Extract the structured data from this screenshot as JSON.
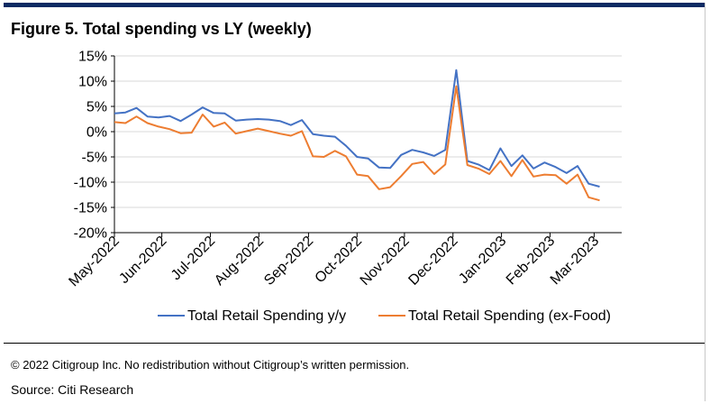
{
  "title": "Figure 5. Total spending vs LY (weekly)",
  "copyright": "© 2022 Citigroup Inc. No redistribution without Citigroup’s written permission.",
  "source": "Source: Citi Research",
  "chart_data": {
    "type": "line",
    "title": "Figure 5. Total spending vs LY (weekly)",
    "xlabel": "",
    "ylabel": "",
    "ylim": [
      -20,
      15
    ],
    "yticks": [
      15,
      10,
      5,
      0,
      -5,
      -10,
      -15,
      -20
    ],
    "ytick_labels": [
      "15%",
      "10%",
      "5%",
      "0%",
      "-5%",
      "-10%",
      "-15%",
      "-20%"
    ],
    "grid": "horizontal",
    "legend_position": "bottom",
    "x_labels": [
      "May-2022",
      "Jun-2022",
      "Jul-2022",
      "Aug-2022",
      "Sep-2022",
      "Oct-2022",
      "Nov-2022",
      "Dec-2022",
      "Jan-2023",
      "Feb-2023",
      "Mar-2023"
    ],
    "x_label_weeks": [
      0,
      4.3,
      8.7,
      13.1,
      17.6,
      22.0,
      26.3,
      30.7,
      35.1,
      39.5,
      43.5
    ],
    "n_weeks": 47,
    "series": [
      {
        "name": "Total Retail Spending y/y",
        "color": "#4472c4",
        "values": [
          3.6,
          3.8,
          4.7,
          3.0,
          2.8,
          3.1,
          2.1,
          3.4,
          4.8,
          3.7,
          3.6,
          2.2,
          2.4,
          2.5,
          2.4,
          2.1,
          1.3,
          2.3,
          -0.5,
          -0.8,
          -1.0,
          -2.8,
          -5.0,
          -5.3,
          -7.1,
          -7.2,
          -4.6,
          -3.6,
          -4.1,
          -4.8,
          -3.6,
          12.2,
          -5.8,
          -6.5,
          -7.6,
          -3.3,
          -6.8,
          -4.7,
          -7.3,
          -6.1,
          -7.0,
          -8.2,
          -6.8,
          -10.3,
          -10.9
        ]
      },
      {
        "name": "Total Retail Spending (ex-Food)",
        "color": "#ed7d31",
        "values": [
          1.9,
          1.7,
          3.0,
          1.7,
          1.0,
          0.5,
          -0.3,
          -0.2,
          3.4,
          1.0,
          1.8,
          -0.4,
          0.1,
          0.6,
          0.1,
          -0.4,
          -0.8,
          0.1,
          -4.9,
          -5.0,
          -3.8,
          -4.9,
          -8.5,
          -8.8,
          -11.4,
          -11.0,
          -8.8,
          -6.4,
          -6.0,
          -8.4,
          -6.5,
          9.0,
          -6.6,
          -7.3,
          -8.4,
          -5.8,
          -8.8,
          -5.6,
          -8.9,
          -8.5,
          -8.6,
          -10.3,
          -8.5,
          -13.0,
          -13.6
        ]
      }
    ]
  }
}
